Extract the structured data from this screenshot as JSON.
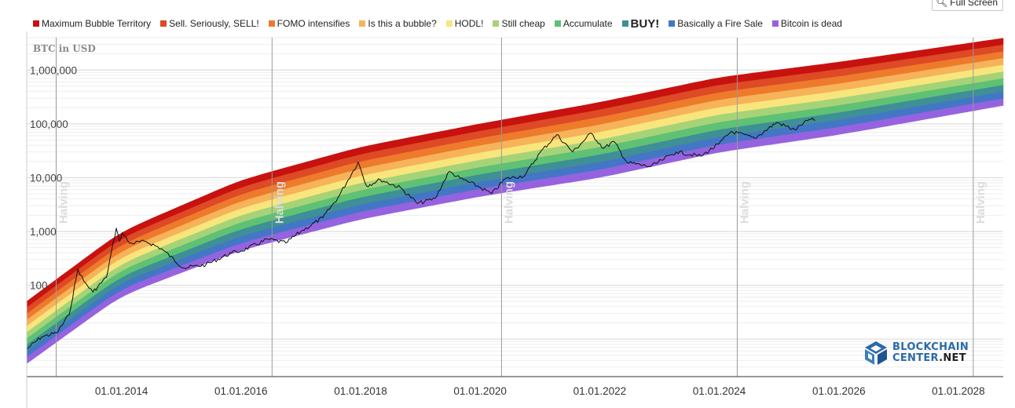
{
  "ui": {
    "fullscreen_label": "Full Screen"
  },
  "logo": {
    "line1": "BLOCKCHAIN",
    "line2a": "CENTER",
    "line2b": ".NET",
    "color": "#2a6aa8"
  },
  "chart_data": {
    "type": "area",
    "ylabel": "BTC in USD",
    "yscale": "log",
    "ylim": [
      2,
      4000000
    ],
    "xlim": [
      "2012-06-01",
      "2028-10-01"
    ],
    "x_ticks": [
      {
        "date": "2014-01-01",
        "label": "01.01.2014"
      },
      {
        "date": "2016-01-01",
        "label": "01.01.2016"
      },
      {
        "date": "2018-01-01",
        "label": "01.01.2018"
      },
      {
        "date": "2020-01-01",
        "label": "01.01.2020"
      },
      {
        "date": "2022-01-01",
        "label": "01.01.2022"
      },
      {
        "date": "2024-01-01",
        "label": "01.01.2024"
      },
      {
        "date": "2026-01-01",
        "label": "01.01.2026"
      },
      {
        "date": "2028-01-01",
        "label": "01.01.2028"
      }
    ],
    "y_ticks": [
      {
        "value": 100,
        "label": "100"
      },
      {
        "value": 1000,
        "label": "1,000"
      },
      {
        "value": 10000,
        "label": "10,000"
      },
      {
        "value": 100000,
        "label": "100,000"
      },
      {
        "value": 1000000,
        "label": "1,000,000"
      }
    ],
    "halvings": [
      {
        "date": "2012-11-28",
        "label": "Halving"
      },
      {
        "date": "2016-07-09",
        "label": "Halving"
      },
      {
        "date": "2020-05-11",
        "label": "Halving"
      },
      {
        "date": "2024-04-20",
        "label": "Halving"
      },
      {
        "date": "2028-04-01",
        "label": "Halving"
      }
    ],
    "bands": [
      {
        "name": "Maximum Bubble Territory",
        "color": "#c8120f",
        "bold": false
      },
      {
        "name": "Sell. Seriously, SELL!",
        "color": "#dd4a25",
        "bold": false
      },
      {
        "name": "FOMO intensifies",
        "color": "#ee7a2c",
        "bold": false
      },
      {
        "name": "Is this a bubble?",
        "color": "#f6b35a",
        "bold": false
      },
      {
        "name": "HODL!",
        "color": "#f8e67c",
        "bold": false
      },
      {
        "name": "Still cheap",
        "color": "#a6d378",
        "bold": false
      },
      {
        "name": "Accumulate",
        "color": "#5fc174",
        "bold": false
      },
      {
        "name": "BUY!",
        "color": "#3f8f96",
        "bold": true
      },
      {
        "name": "Basically a Fire Sale",
        "color": "#4476c6",
        "bold": false
      },
      {
        "name": "Bitcoin is dead",
        "color": "#9563df",
        "bold": false
      }
    ],
    "rainbow_upper_edge": [
      {
        "date": "2012-06-01",
        "value": 50
      },
      {
        "date": "2014-01-01",
        "value": 1000
      },
      {
        "date": "2016-01-01",
        "value": 9000
      },
      {
        "date": "2018-01-01",
        "value": 37000
      },
      {
        "date": "2020-01-01",
        "value": 100000
      },
      {
        "date": "2022-01-01",
        "value": 250000
      },
      {
        "date": "2024-01-01",
        "value": 730000
      },
      {
        "date": "2026-01-01",
        "value": 1400000
      },
      {
        "date": "2028-10-01",
        "value": 3900000
      }
    ],
    "rainbow_lower_edge": [
      {
        "date": "2012-06-01",
        "value": 3.5
      },
      {
        "date": "2014-01-01",
        "value": 65
      },
      {
        "date": "2016-01-01",
        "value": 450
      },
      {
        "date": "2018-01-01",
        "value": 1700
      },
      {
        "date": "2020-01-01",
        "value": 4500
      },
      {
        "date": "2022-01-01",
        "value": 10000
      },
      {
        "date": "2024-01-01",
        "value": 30000
      },
      {
        "date": "2026-01-01",
        "value": 63000
      },
      {
        "date": "2028-10-01",
        "value": 220000
      }
    ],
    "price_series": {
      "color": "#111111",
      "points": [
        {
          "date": "2012-06-01",
          "value": 6.5
        },
        {
          "date": "2012-09-01",
          "value": 11
        },
        {
          "date": "2012-12-01",
          "value": 13
        },
        {
          "date": "2013-02-15",
          "value": 28
        },
        {
          "date": "2013-04-10",
          "value": 200
        },
        {
          "date": "2013-05-15",
          "value": 120
        },
        {
          "date": "2013-07-10",
          "value": 75
        },
        {
          "date": "2013-10-01",
          "value": 140
        },
        {
          "date": "2013-11-30",
          "value": 1150
        },
        {
          "date": "2013-12-20",
          "value": 650
        },
        {
          "date": "2014-01-05",
          "value": 950
        },
        {
          "date": "2014-02-20",
          "value": 600
        },
        {
          "date": "2014-06-01",
          "value": 650
        },
        {
          "date": "2014-09-01",
          "value": 480
        },
        {
          "date": "2015-01-15",
          "value": 210
        },
        {
          "date": "2015-06-01",
          "value": 240
        },
        {
          "date": "2015-11-05",
          "value": 400
        },
        {
          "date": "2016-01-01",
          "value": 430
        },
        {
          "date": "2016-06-15",
          "value": 720
        },
        {
          "date": "2016-10-01",
          "value": 610
        },
        {
          "date": "2017-01-01",
          "value": 1000
        },
        {
          "date": "2017-05-15",
          "value": 1800
        },
        {
          "date": "2017-08-15",
          "value": 4200
        },
        {
          "date": "2017-12-17",
          "value": 19500
        },
        {
          "date": "2018-02-06",
          "value": 7000
        },
        {
          "date": "2018-05-01",
          "value": 9200
        },
        {
          "date": "2018-09-01",
          "value": 6500
        },
        {
          "date": "2018-12-15",
          "value": 3300
        },
        {
          "date": "2019-04-01",
          "value": 4100
        },
        {
          "date": "2019-06-26",
          "value": 13000
        },
        {
          "date": "2019-09-01",
          "value": 9700
        },
        {
          "date": "2019-12-15",
          "value": 7000
        },
        {
          "date": "2020-03-12",
          "value": 5000
        },
        {
          "date": "2020-06-01",
          "value": 9500
        },
        {
          "date": "2020-10-01",
          "value": 11000
        },
        {
          "date": "2020-12-31",
          "value": 29000
        },
        {
          "date": "2021-04-14",
          "value": 63000
        },
        {
          "date": "2021-07-20",
          "value": 30000
        },
        {
          "date": "2021-11-10",
          "value": 67000
        },
        {
          "date": "2022-01-24",
          "value": 35000
        },
        {
          "date": "2022-03-28",
          "value": 47000
        },
        {
          "date": "2022-06-18",
          "value": 19000
        },
        {
          "date": "2022-11-09",
          "value": 16000
        },
        {
          "date": "2023-01-15",
          "value": 21000
        },
        {
          "date": "2023-04-14",
          "value": 30000
        },
        {
          "date": "2023-09-11",
          "value": 25000
        },
        {
          "date": "2023-12-31",
          "value": 42500
        },
        {
          "date": "2024-03-14",
          "value": 72000
        },
        {
          "date": "2024-08-05",
          "value": 54000
        },
        {
          "date": "2024-12-17",
          "value": 106000
        },
        {
          "date": "2025-04-08",
          "value": 77000
        },
        {
          "date": "2025-06-01",
          "value": 105000
        },
        {
          "date": "2025-07-14",
          "value": 120000
        },
        {
          "date": "2025-08-10",
          "value": 116000
        }
      ]
    }
  }
}
